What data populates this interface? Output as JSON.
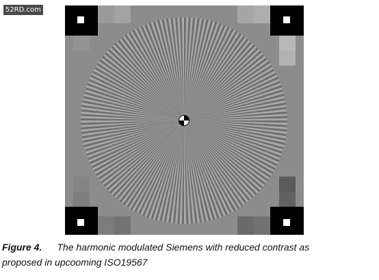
{
  "watermark": {
    "text": "52RD.com"
  },
  "caption": {
    "label": "Figure 4.",
    "line1": "The harmonic modulated Siemens with reduced contrast as",
    "line2": "proposed in upcooming ISO19567"
  },
  "target": {
    "spokes": 144,
    "background_color": "#8c8c8c",
    "spoke_dark_color": "#6f6f6f",
    "spoke_light_color": "#a9a9a9",
    "corner_marker_color": "#000000",
    "corner_square_color": "#ffffff"
  }
}
